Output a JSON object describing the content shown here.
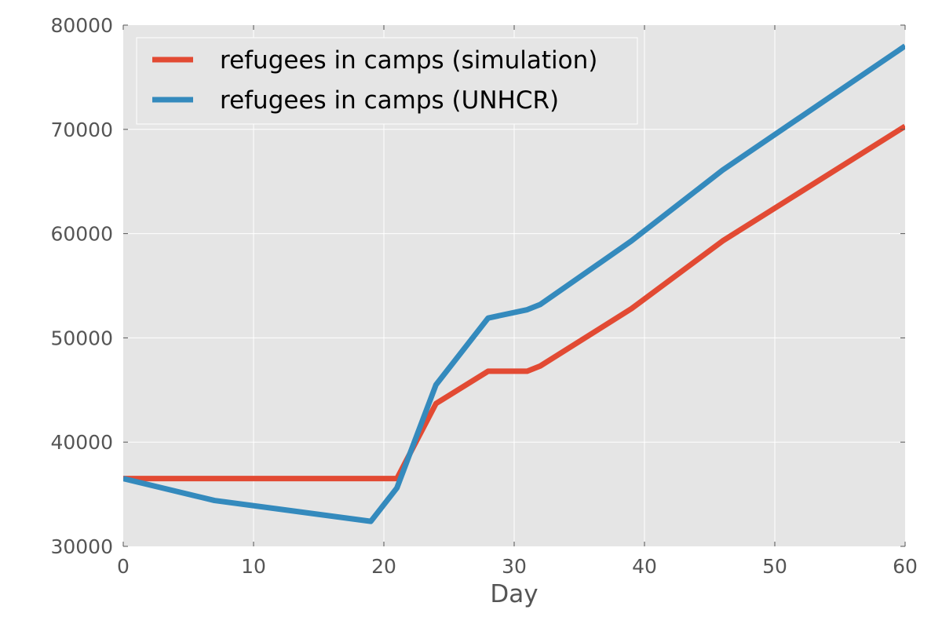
{
  "chart_data": {
    "type": "line",
    "title": "",
    "xlabel": "Day",
    "ylabel": "",
    "xlim": [
      0,
      60
    ],
    "ylim": [
      30000,
      80000
    ],
    "xticks": [
      0,
      10,
      20,
      30,
      40,
      50,
      60
    ],
    "yticks": [
      30000,
      40000,
      50000,
      60000,
      70000,
      80000
    ],
    "grid": true,
    "legend_position": "top-left",
    "background_color": "#e5e5e5",
    "series": [
      {
        "name": "refugees in camps (simulation)",
        "color": "#e24a33",
        "x": [
          0,
          21,
          24,
          28,
          31,
          32,
          39,
          46,
          60
        ],
        "y": [
          36500,
          36500,
          43700,
          46800,
          46800,
          47300,
          52800,
          59300,
          70300
        ]
      },
      {
        "name": "refugees in camps (UNHCR)",
        "color": "#348abd",
        "x": [
          0,
          7,
          19,
          21,
          24,
          28,
          31,
          32,
          39,
          46,
          60
        ],
        "y": [
          36500,
          34400,
          32400,
          35600,
          45500,
          51900,
          52700,
          53200,
          59300,
          66100,
          78000
        ]
      }
    ]
  }
}
